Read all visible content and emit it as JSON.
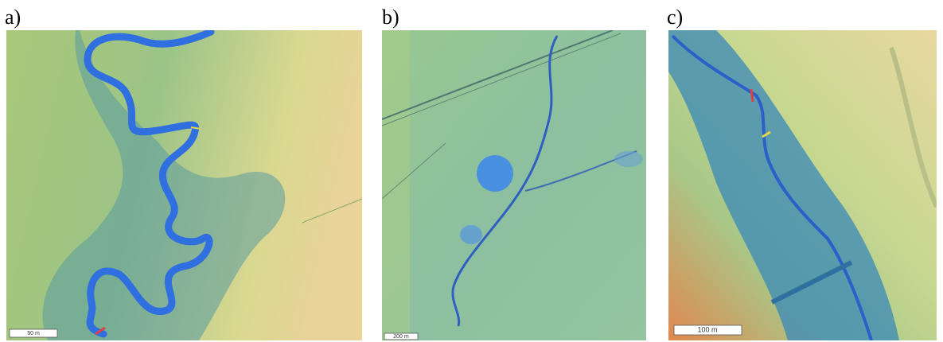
{
  "panels": [
    {
      "label": "a)",
      "scale_bar": "50 m"
    },
    {
      "label": "b)",
      "scale_bar": "200 m"
    },
    {
      "label": "c)",
      "scale_bar": "100 m"
    }
  ]
}
